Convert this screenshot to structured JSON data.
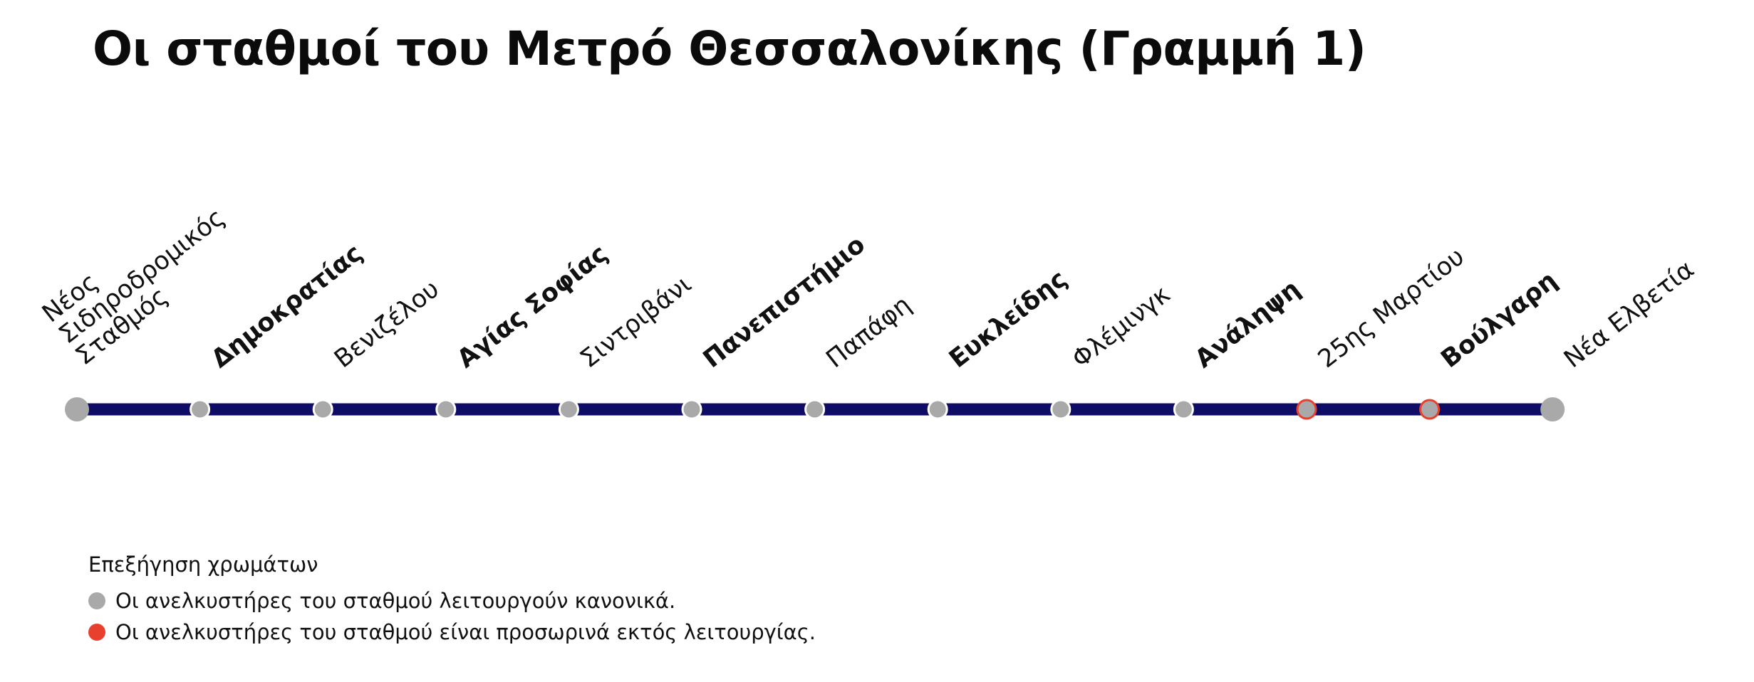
{
  "title": "Οι σταθμοί του Μετρό Θεσσαλονίκης (Γραμμή 1)",
  "colors": {
    "line": "#0f0c66",
    "operational": "#a9a9a9",
    "out_of_service": "#e8402f",
    "out_of_service_ring": "#e8402f"
  },
  "stations": [
    {
      "name": "Νέος Σιδηροδρομικός Σταθμός",
      "lines": [
        "Νέος",
        "Σιδηροδρομικός",
        "Σταθμός"
      ],
      "bold": false,
      "status": "operational",
      "terminal": true
    },
    {
      "name": "Δημοκρατίας",
      "lines": [
        "Δημοκρατίας"
      ],
      "bold": true,
      "status": "operational",
      "terminal": false
    },
    {
      "name": "Βενιζέλου",
      "lines": [
        "Βενιζέλου"
      ],
      "bold": false,
      "status": "operational",
      "terminal": false
    },
    {
      "name": "Αγίας Σοφίας",
      "lines": [
        "Αγίας Σοφίας"
      ],
      "bold": true,
      "status": "operational",
      "terminal": false
    },
    {
      "name": "Σιντριβάνι",
      "lines": [
        "Σιντριβάνι"
      ],
      "bold": false,
      "status": "operational",
      "terminal": false
    },
    {
      "name": "Πανεπιστήμιο",
      "lines": [
        "Πανεπιστήμιο"
      ],
      "bold": true,
      "status": "operational",
      "terminal": false
    },
    {
      "name": "Παπάφη",
      "lines": [
        "Παπάφη"
      ],
      "bold": false,
      "status": "operational",
      "terminal": false
    },
    {
      "name": "Ευκλείδης",
      "lines": [
        "Ευκλείδης"
      ],
      "bold": true,
      "status": "operational",
      "terminal": false
    },
    {
      "name": "Φλέμινγκ",
      "lines": [
        "Φλέμινγκ"
      ],
      "bold": false,
      "status": "operational",
      "terminal": false
    },
    {
      "name": "Ανάληψη",
      "lines": [
        "Ανάληψη"
      ],
      "bold": true,
      "status": "operational",
      "terminal": false
    },
    {
      "name": "25ης Μαρτίου",
      "lines": [
        "25ης Μαρτίου"
      ],
      "bold": false,
      "status": "out_of_service",
      "terminal": false
    },
    {
      "name": "Βούλγαρη",
      "lines": [
        "Βούλγαρη"
      ],
      "bold": true,
      "status": "out_of_service",
      "terminal": false
    },
    {
      "name": "Νέα Ελβετία",
      "lines": [
        "Νέα Ελβετία"
      ],
      "bold": false,
      "status": "operational",
      "terminal": true
    }
  ],
  "legend": {
    "title": "Επεξήγηση χρωμάτων",
    "operational": "Οι ανελκυστήρες του σταθμού λειτουργούν κανονικά.",
    "out_of_service": "Οι ανελκυστήρες του σταθμού είναι προσωρινά εκτός λειτουργίας."
  }
}
